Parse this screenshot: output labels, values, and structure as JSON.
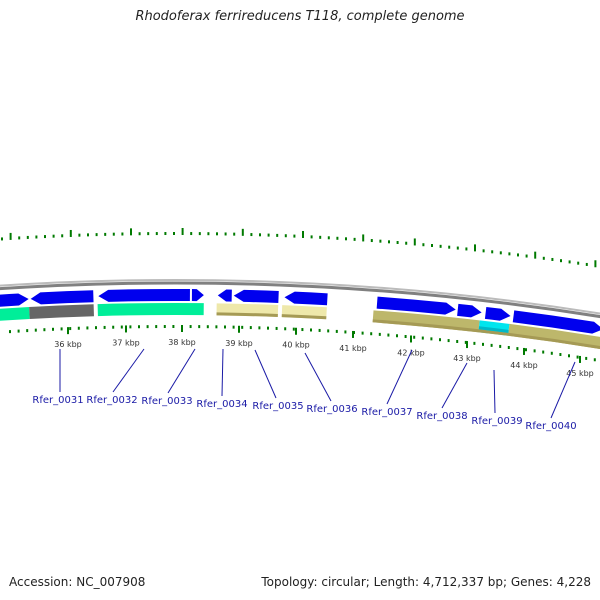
{
  "title": "Rhodoferax ferrireducens T118, complete genome",
  "footer": {
    "accession": "Accession: NC_007908",
    "summary": "Topology: circular; Length: 4,712,337 bp; Genes: 4,228"
  },
  "colors": {
    "backbone": "#808080",
    "forward_cds": "#0000ee",
    "forward_cds_shade": "#0000aa",
    "cog_green": "#00ee99",
    "cog_gray": "#666666",
    "cog_khaki": "#eee8aa",
    "cog_olive": "#bdb76b",
    "cog_cyan": "#00e5ee",
    "tick_green": "#007a00",
    "label_blue": "#1a1aa6"
  },
  "tick_labels": [
    "36 kbp",
    "37 kbp",
    "38 kbp",
    "39 kbp",
    "40 kbp",
    "41 kbp",
    "42 kbp",
    "43 kbp",
    "44 kbp",
    "45 kbp"
  ],
  "genes": [
    {
      "label": "Rfer_0031"
    },
    {
      "label": "Rfer_0032"
    },
    {
      "label": "Rfer_0033"
    },
    {
      "label": "Rfer_0034"
    },
    {
      "label": "Rfer_0035"
    },
    {
      "label": "Rfer_0036"
    },
    {
      "label": "Rfer_0037"
    },
    {
      "label": "Rfer_0038"
    },
    {
      "label": "Rfer_0039"
    },
    {
      "label": "Rfer_0040"
    }
  ]
}
